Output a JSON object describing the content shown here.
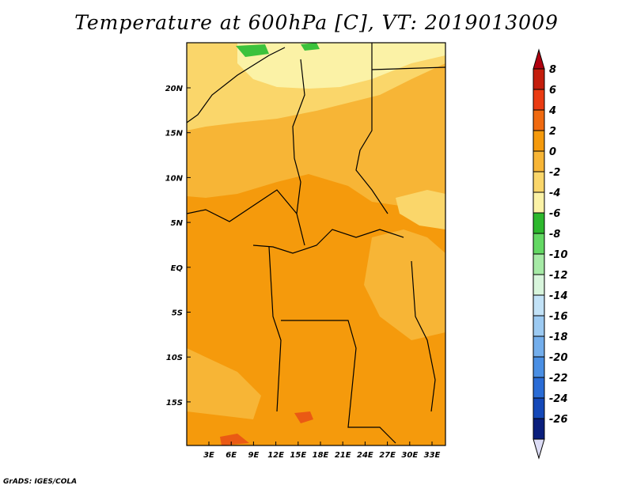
{
  "title": "Temperature at 600hPa [C], VT: 2019013009",
  "credit": "GrADS: IGES/COLA",
  "lat_labels": [
    "20N",
    "15N",
    "10N",
    "5N",
    "EQ",
    "5S",
    "10S",
    "15S"
  ],
  "lon_labels": [
    "3E",
    "6E",
    "9E",
    "12E",
    "15E",
    "18E",
    "21E",
    "24E",
    "27E",
    "30E",
    "33E"
  ],
  "colorbar": {
    "labels": [
      "8",
      "6",
      "4",
      "2",
      "0",
      "-2",
      "-4",
      "-6",
      "-8",
      "-10",
      "-12",
      "-14",
      "-16",
      "-18",
      "-20",
      "-22",
      "-24",
      "-26"
    ],
    "colors": [
      "#c41d0c",
      "#ea3b12",
      "#f06a10",
      "#f59a0c",
      "#f7b536",
      "#fad66a",
      "#fbf2a6",
      "#2db82d",
      "#63d863",
      "#a6eaa6",
      "#d8f5dc",
      "#c2e2f7",
      "#9ccaf2",
      "#73aeec",
      "#4a8fe4",
      "#2a6cd6",
      "#1448b8",
      "#0a1e7c"
    ],
    "over_color": "#b0000f",
    "under_color": "#dcdcf5"
  },
  "map_colors": {
    "warm_1": "#f59a0c",
    "warm_2": "#f7b536",
    "warm_3": "#fad66a",
    "warm_4": "#fbf2a6",
    "hot": "#ea5a14",
    "cold_patch": "#3cc23c"
  }
}
